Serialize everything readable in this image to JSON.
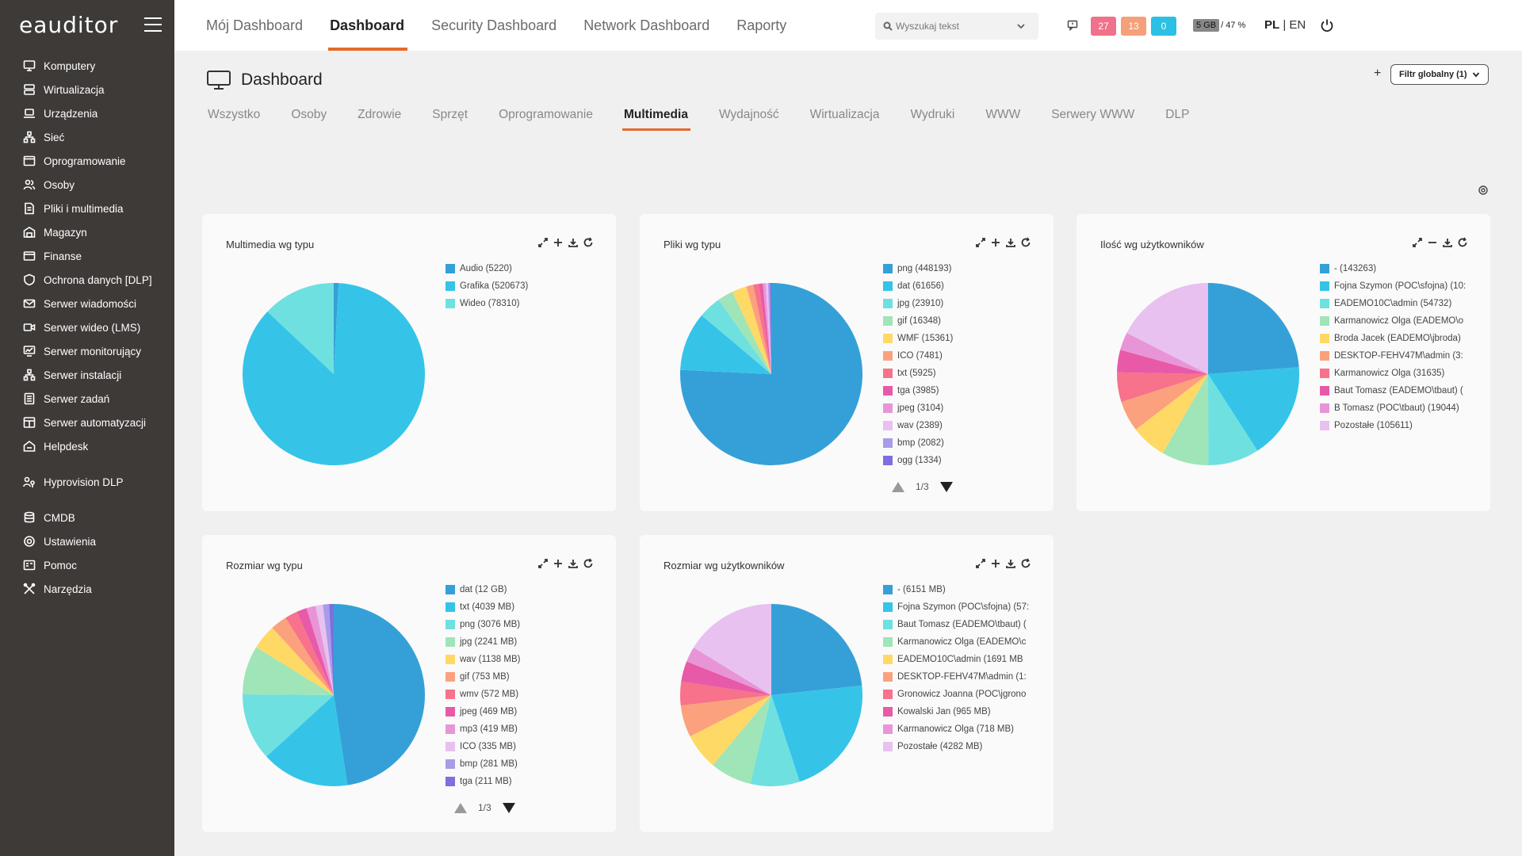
{
  "app": {
    "logo": "eauditor"
  },
  "sidebar": {
    "items": [
      {
        "label": "Komputery",
        "icon": "monitor-icon"
      },
      {
        "label": "Wirtualizacja",
        "icon": "server-stack-icon"
      },
      {
        "label": "Urządzenia",
        "icon": "devices-icon"
      },
      {
        "label": "Sieć",
        "icon": "network-icon"
      },
      {
        "label": "Oprogramowanie",
        "icon": "window-icon"
      },
      {
        "label": "Osoby",
        "icon": "users-icon"
      },
      {
        "label": "Pliki i multimedia",
        "icon": "file-icon"
      },
      {
        "label": "Magazyn",
        "icon": "warehouse-icon"
      },
      {
        "label": "Finanse",
        "icon": "wallet-icon"
      },
      {
        "label": "Ochrona danych [DLP]",
        "icon": "shield-icon"
      },
      {
        "label": "Serwer wiadomości",
        "icon": "mail-icon"
      },
      {
        "label": "Serwer wideo (LMS)",
        "icon": "video-icon"
      },
      {
        "label": "Serwer monitorujący",
        "icon": "monitor-chart-icon"
      },
      {
        "label": "Serwer instalacji",
        "icon": "install-icon"
      },
      {
        "label": "Serwer zadań",
        "icon": "tasks-icon"
      },
      {
        "label": "Serwer automatyzacji",
        "icon": "automation-icon"
      },
      {
        "label": "Helpdesk",
        "icon": "helpdesk-icon"
      }
    ],
    "items2": [
      {
        "label": "Hyprovision DLP",
        "icon": "user-key-icon"
      }
    ],
    "items3": [
      {
        "label": "CMDB",
        "icon": "database-icon"
      },
      {
        "label": "Ustawienia",
        "icon": "gear-icon"
      },
      {
        "label": "Pomoc",
        "icon": "help-icon"
      },
      {
        "label": "Narzędzia",
        "icon": "tools-icon"
      }
    ]
  },
  "topbar": {
    "tabs": [
      {
        "label": "Mój Dashboard",
        "active": false
      },
      {
        "label": "Dashboard",
        "active": true
      },
      {
        "label": "Security Dashboard",
        "active": false
      },
      {
        "label": "Network Dashboard",
        "active": false
      },
      {
        "label": "Raporty",
        "active": false
      }
    ],
    "search_placeholder": "Wyszukaj tekst",
    "badges": [
      {
        "value": "27",
        "color": "#f0718a"
      },
      {
        "value": "13",
        "color": "#f5a07a"
      },
      {
        "value": "0",
        "color": "#2bc0e4"
      }
    ],
    "storage_size": "5 GB",
    "storage_pct": "/ 47 %",
    "lang_active": "PL",
    "lang_sep": " | ",
    "lang_other": "EN"
  },
  "page": {
    "title": "Dashboard",
    "filter_label": "Filtr globalny (1)",
    "add_label": "+",
    "sub_tabs": [
      {
        "label": "Wszystko",
        "active": false
      },
      {
        "label": "Osoby",
        "active": false
      },
      {
        "label": "Zdrowie",
        "active": false
      },
      {
        "label": "Sprzęt",
        "active": false
      },
      {
        "label": "Oprogramowanie",
        "active": false
      },
      {
        "label": "Multimedia",
        "active": true
      },
      {
        "label": "Wydajność",
        "active": false
      },
      {
        "label": "Wirtualizacja",
        "active": false
      },
      {
        "label": "Wydruki",
        "active": false
      },
      {
        "label": "WWW",
        "active": false
      },
      {
        "label": "Serwery WWW",
        "active": false
      },
      {
        "label": "DLP",
        "active": false
      }
    ]
  },
  "chart_data": [
    {
      "type": "pie",
      "title": "Multimedia wg typu",
      "labels": [
        "Audio (5220)",
        "Grafika (520673)",
        "Wideo (78310)"
      ],
      "values": [
        5220,
        520673,
        78310
      ],
      "colors": [
        "#35a0d8",
        "#35c4e8",
        "#6ee0e0"
      ]
    },
    {
      "type": "pie",
      "title": "Pliki wg typu",
      "labels": [
        "png (448193)",
        "dat (61656)",
        "jpg (23910)",
        "gif (16348)",
        "WMF (15361)",
        "ICO (7481)",
        "txt (5925)",
        "tga (3985)",
        "jpeg (3104)",
        "wav (2389)",
        "bmp (2082)",
        "ogg (1334)"
      ],
      "values": [
        448193,
        61656,
        23910,
        16348,
        15361,
        7481,
        5925,
        3985,
        3104,
        2389,
        2082,
        1334
      ],
      "colors": [
        "#35a0d8",
        "#35c4e8",
        "#6ee0e0",
        "#9fe5b8",
        "#ffd966",
        "#fca17d",
        "#f7728a",
        "#e85aa8",
        "#e895d8",
        "#e8c1f0",
        "#a99be8",
        "#7d6fe0"
      ],
      "pager": "1/3"
    },
    {
      "type": "pie",
      "title": "Ilość wg użytkowników",
      "labels": [
        "- (143263)",
        "Fojna Szymon (POC\\sfojna) (10:",
        "EADEMO10C\\admin (54732)",
        "Karmanowicz Olga (EADEMO\\o",
        "Broda Jacek (EADEMO\\jbroda)",
        "DESKTOP-FEHV47M\\admin (3:",
        "Karmanowicz Olga (31635)",
        "Baut Tomasz (EADEMO\\tbaut) (",
        "B Tomasz (POC\\tbaut) (19044)",
        "Pozostałe (105611)"
      ],
      "values": [
        143263,
        103000,
        54732,
        50000,
        38000,
        33000,
        31635,
        24000,
        19044,
        105611
      ],
      "colors": [
        "#35a0d8",
        "#35c4e8",
        "#6ee0e0",
        "#9fe5b8",
        "#ffd966",
        "#fca17d",
        "#f7728a",
        "#e85aa8",
        "#e895d8",
        "#e8c1f0"
      ]
    },
    {
      "type": "pie",
      "title": "Rozmiar wg typu",
      "labels": [
        "dat (12 GB)",
        "txt (4039 MB)",
        "png (3076 MB)",
        "jpg (2241 MB)",
        "wav (1138 MB)",
        "gif (753 MB)",
        "wmv (572 MB)",
        "jpeg (469 MB)",
        "mp3 (419 MB)",
        "ICO (335 MB)",
        "bmp (281 MB)",
        "tga (211 MB)"
      ],
      "values": [
        12288,
        4039,
        3076,
        2241,
        1138,
        753,
        572,
        469,
        419,
        335,
        281,
        211
      ],
      "colors": [
        "#35a0d8",
        "#35c4e8",
        "#6ee0e0",
        "#9fe5b8",
        "#ffd966",
        "#fca17d",
        "#f7728a",
        "#e85aa8",
        "#e895d8",
        "#e8c1f0",
        "#a99be8",
        "#7d6fe0"
      ],
      "pager": "1/3"
    },
    {
      "type": "pie",
      "title": "Rozmiar wg użytkowników",
      "labels": [
        "- (6151 MB)",
        "Fojna Szymon (POC\\sfojna) (57:",
        "Baut Tomasz (EADEMO\\tbaut) (",
        "Karmanowicz Olga (EADEMO\\c",
        "EADEMO10C\\admin (1691 MB",
        "DESKTOP-FEHV47M\\admin (1:",
        "Gronowicz Joanna (POC\\jgrono",
        "Kowalski Jan (965 MB)",
        "Karmanowicz Olga (718 MB)",
        "Pozostałe (4282 MB)"
      ],
      "values": [
        6151,
        5700,
        2300,
        1950,
        1691,
        1500,
        1100,
        965,
        718,
        4282
      ],
      "colors": [
        "#35a0d8",
        "#35c4e8",
        "#6ee0e0",
        "#9fe5b8",
        "#ffd966",
        "#fca17d",
        "#f7728a",
        "#e85aa8",
        "#e895d8",
        "#e8c1f0"
      ]
    }
  ]
}
